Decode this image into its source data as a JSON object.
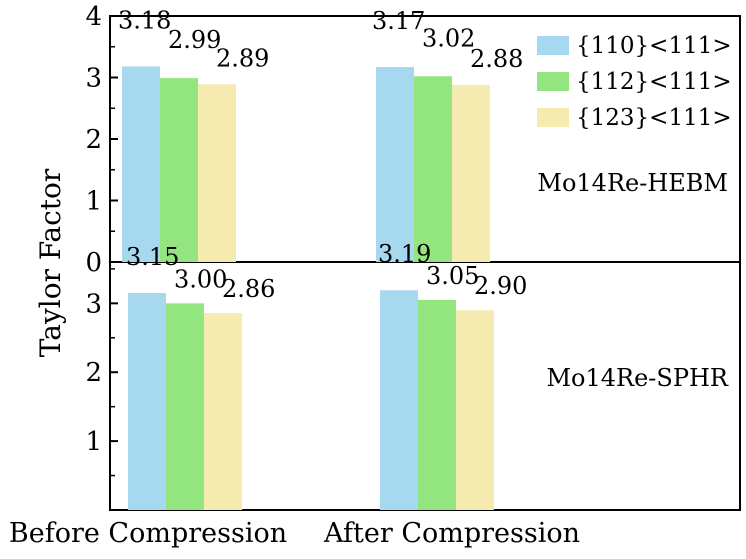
{
  "chart_data": [
    {
      "type": "bar",
      "panel": "top",
      "label": "Mo14Re-HEBM",
      "categories": [
        "Before Compression",
        "After Compression"
      ],
      "series": [
        {
          "name": "{110}<111>",
          "color": "#a6d8ef",
          "values": [
            3.18,
            3.17
          ],
          "labels": [
            "3.18",
            "3.17"
          ]
        },
        {
          "name": "{112}<111>",
          "color": "#92e57f",
          "values": [
            2.99,
            3.02
          ],
          "labels": [
            "2.99",
            "3.02"
          ]
        },
        {
          "name": "{123}<111>",
          "color": "#f5ebb0",
          "values": [
            2.89,
            2.88
          ],
          "labels": [
            "2.89",
            "2.88"
          ]
        }
      ],
      "ylim": [
        0,
        4
      ],
      "yticks": [
        "0",
        "1",
        "2",
        "3",
        "4"
      ]
    },
    {
      "type": "bar",
      "panel": "bottom",
      "label": "Mo14Re-SPHR",
      "categories": [
        "Before Compression",
        "After Compression"
      ],
      "series": [
        {
          "name": "{110}<111>",
          "color": "#a6d8ef",
          "values": [
            3.15,
            3.19
          ],
          "labels": [
            "3.15",
            "3.19"
          ]
        },
        {
          "name": "{112}<111>",
          "color": "#92e57f",
          "values": [
            3.0,
            3.05
          ],
          "labels": [
            "3.00",
            "3.05"
          ]
        },
        {
          "name": "{123}<111>",
          "color": "#f5ebb0",
          "values": [
            2.86,
            2.9
          ],
          "labels": [
            "2.86",
            "2.90"
          ]
        }
      ],
      "ylim": [
        0,
        3.6
      ],
      "yticks": [
        "1",
        "2",
        "3"
      ]
    }
  ],
  "ylabel": "Taylor Factor",
  "legend": {
    "position": "top-right",
    "items": [
      {
        "name": "{110}<111>",
        "color": "#a6d8ef"
      },
      {
        "name": "{112}<111>",
        "color": "#92e57f"
      },
      {
        "name": "{123}<111>",
        "color": "#f5ebb0"
      }
    ]
  },
  "xlabels": [
    "Before Compression",
    "After Compression"
  ]
}
